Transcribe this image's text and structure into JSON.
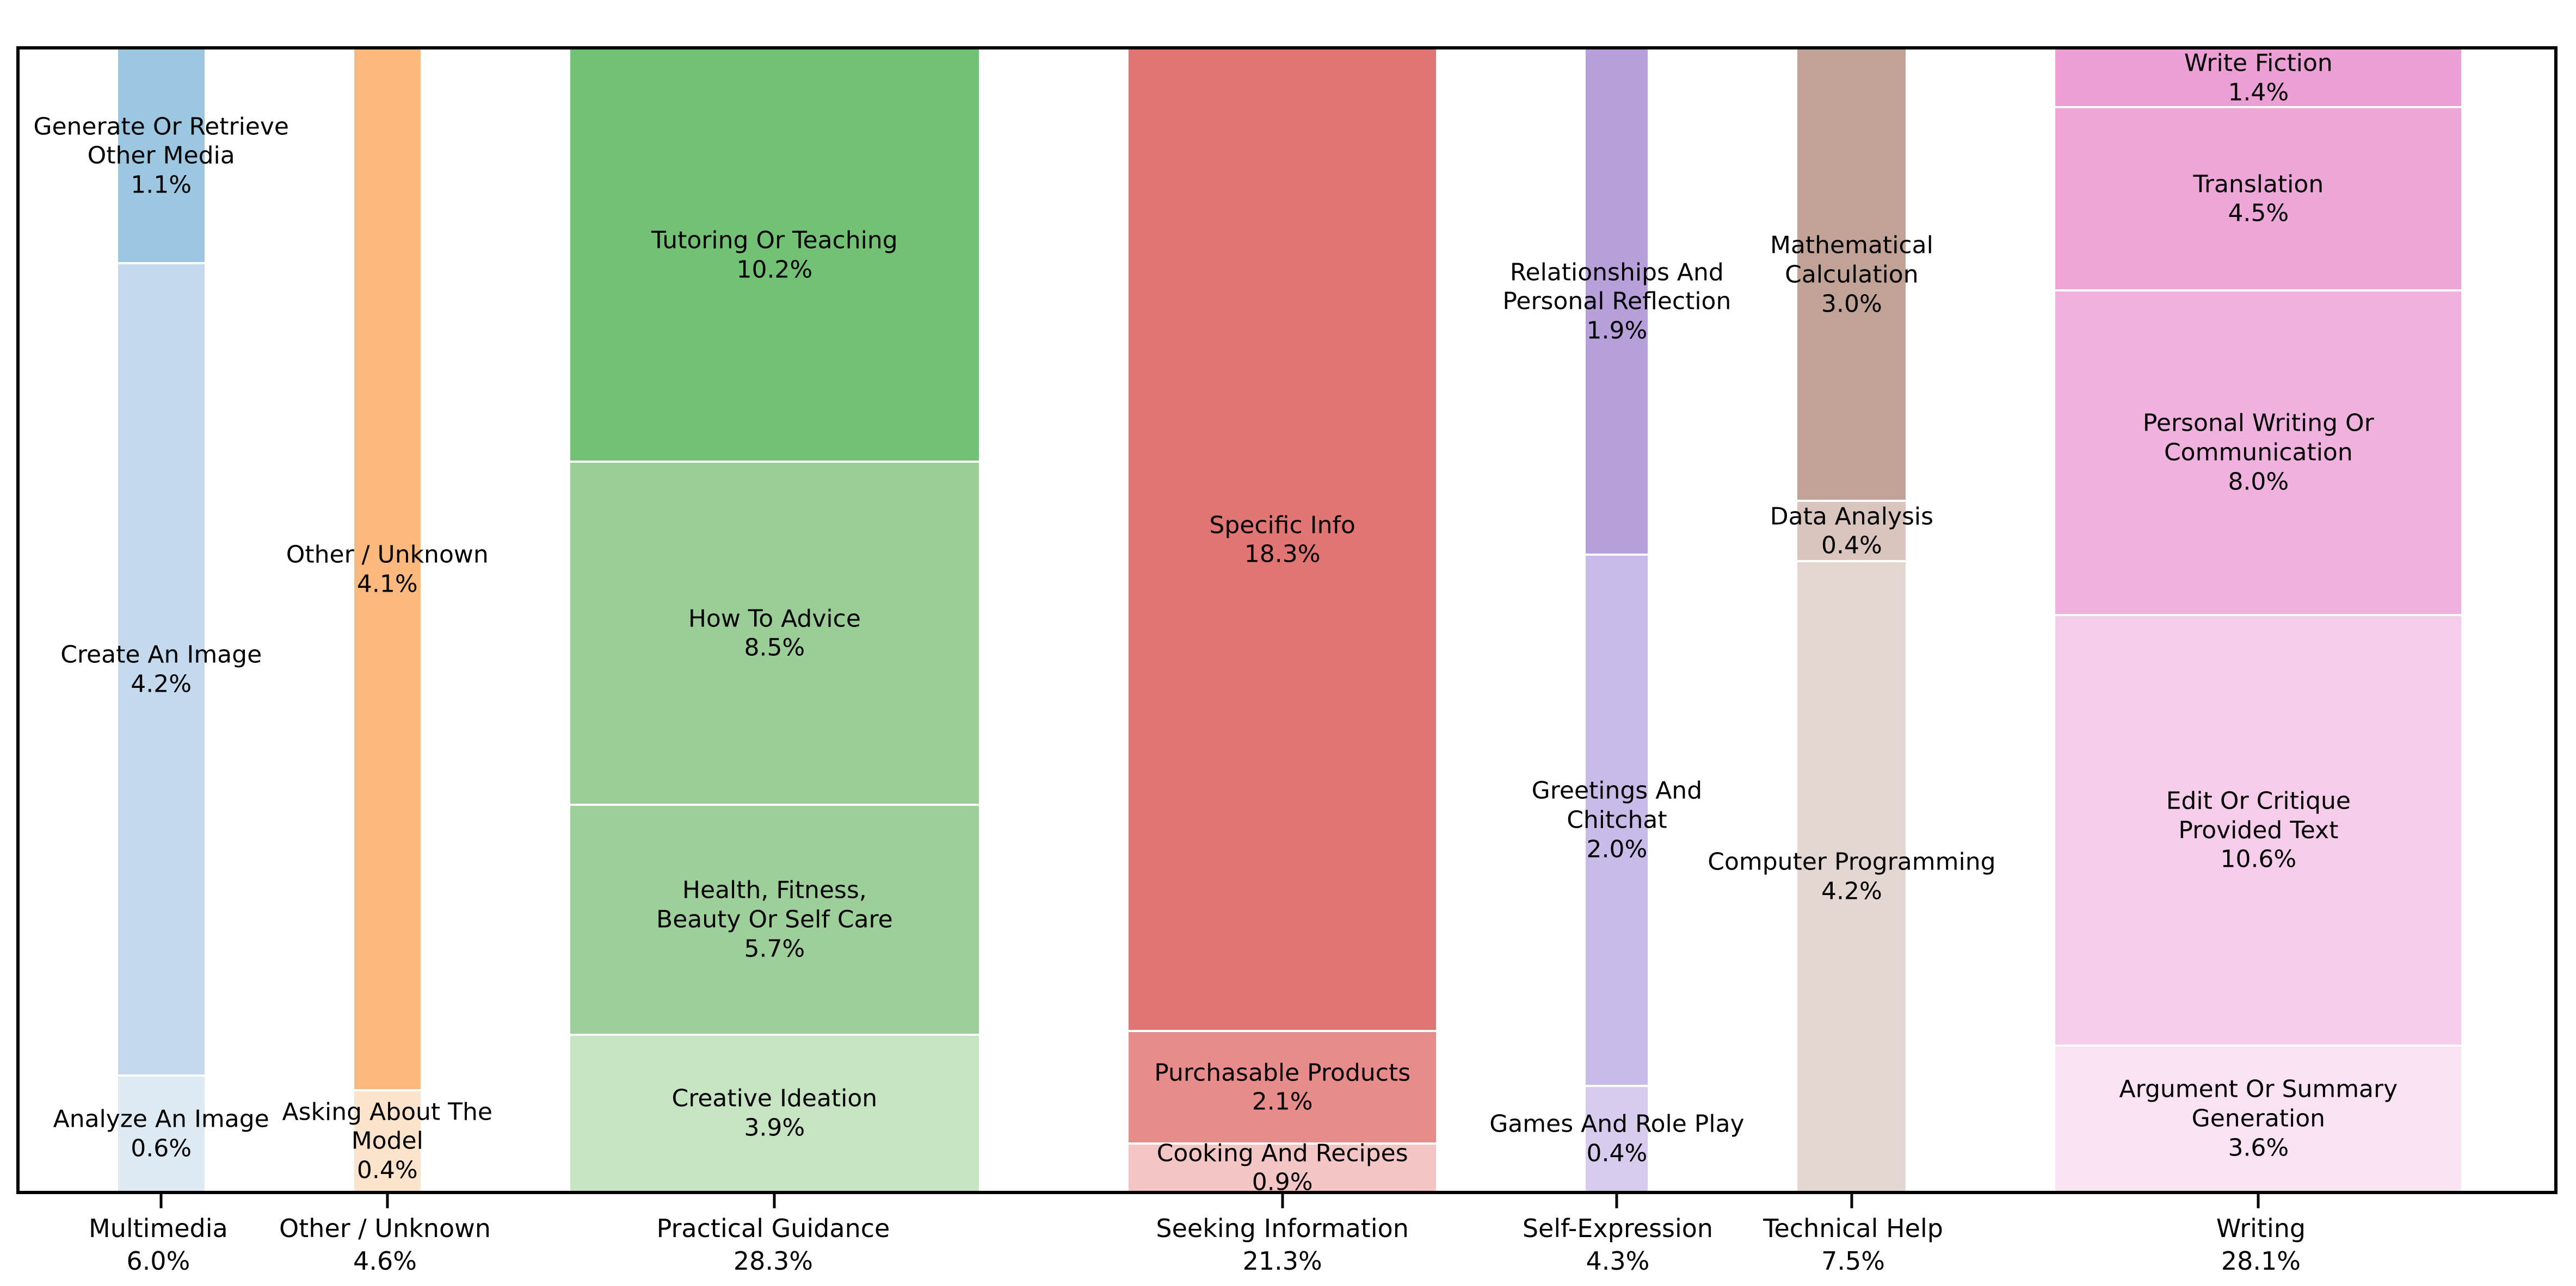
{
  "chart_data": {
    "type": "bar",
    "subtype": "mosaic-marimekko",
    "orientation": "vertical",
    "grid": false,
    "legend": false,
    "background_color": "#ffffff",
    "frame_color": "#000000",
    "text_color": "#000000",
    "separator_color": "#ffffff",
    "categories": [
      {
        "label": "Multimedia",
        "pct": "6.0%",
        "segments": [
          {
            "label": "Generate Or Retrieve Other Media",
            "pct": "1.1%",
            "lines": [
              "Generate Or Retrieve",
              "Other Media",
              "1.1%"
            ],
            "color": "#9cc7e0"
          },
          {
            "label": "Create An Image",
            "pct": "4.2%",
            "lines": [
              "Create An Image",
              "4.2%"
            ],
            "color": "#c3d9ed"
          },
          {
            "label": "Analyze An Image",
            "pct": "0.6%",
            "lines": [
              "Analyze An Image",
              "0.6%"
            ],
            "color": "#ddeaf4"
          }
        ]
      },
      {
        "label": "Other / Unknown",
        "pct": "4.6%",
        "segments": [
          {
            "label": "Other / Unknown",
            "pct": "4.1%",
            "lines": [
              "Other / Unknown",
              "4.1%"
            ],
            "color": "#fcb97d"
          },
          {
            "label": "Asking About The Model",
            "pct": "0.4%",
            "lines": [
              "Asking About The",
              "Model",
              "0.4%"
            ],
            "color": "#fce3cb"
          }
        ]
      },
      {
        "label": "Practical Guidance",
        "pct": "28.3%",
        "segments": [
          {
            "label": "Tutoring Or Teaching",
            "pct": "10.2%",
            "lines": [
              "Tutoring Or Teaching",
              "10.2%"
            ],
            "color": "#73c175"
          },
          {
            "label": "How To Advice",
            "pct": "8.5%",
            "lines": [
              "How To Advice",
              "8.5%"
            ],
            "color": "#9bcd97"
          },
          {
            "label": "Health, Fitness, Beauty Or Self Care",
            "pct": "5.7%",
            "lines": [
              "Health, Fitness,",
              "Beauty Or Self Care",
              "5.7%"
            ],
            "color": "#9ecf9b"
          },
          {
            "label": "Creative Ideation",
            "pct": "3.9%",
            "lines": [
              "Creative Ideation",
              "3.9%"
            ],
            "color": "#c6e4c1"
          }
        ]
      },
      {
        "label": "Seeking Information",
        "pct": "21.3%",
        "segments": [
          {
            "label": "Specific Info",
            "pct": "18.3%",
            "lines": [
              "Specific Info",
              "18.3%"
            ],
            "color": "#e07674"
          },
          {
            "label": "Purchasable Products",
            "pct": "2.1%",
            "lines": [
              "Purchasable Products",
              "2.1%"
            ],
            "color": "#e78c8a"
          },
          {
            "label": "Cooking And Recipes",
            "pct": "0.9%",
            "lines": [
              "Cooking And Recipes",
              "0.9%"
            ],
            "color": "#f3c5c4"
          }
        ]
      },
      {
        "label": "Self-Expression",
        "pct": "4.3%",
        "segments": [
          {
            "label": "Relationships And Personal Reflection",
            "pct": "1.9%",
            "lines": [
              "Relationships And",
              "Personal Reflection",
              "1.9%"
            ],
            "color": "#b79fd9"
          },
          {
            "label": "Greetings And Chitchat",
            "pct": "2.0%",
            "lines": [
              "Greetings And",
              "Chitchat",
              "2.0%"
            ],
            "color": "#c9bbe7"
          },
          {
            "label": "Games And Role Play",
            "pct": "0.4%",
            "lines": [
              "Games And Role Play",
              "0.4%"
            ],
            "color": "#d8ccee"
          }
        ]
      },
      {
        "label": "Technical Help",
        "pct": "7.5%",
        "segments": [
          {
            "label": "Mathematical Calculation",
            "pct": "3.0%",
            "lines": [
              "Mathematical",
              "Calculation",
              "3.0%"
            ],
            "color": "#c1a296"
          },
          {
            "label": "Data Analysis",
            "pct": "0.4%",
            "lines": [
              "Data Analysis",
              "0.4%"
            ],
            "color": "#d9c5be"
          },
          {
            "label": "Computer Programming",
            "pct": "4.2%",
            "lines": [
              "Computer Programming",
              "4.2%"
            ],
            "color": "#e4d6d0"
          }
        ]
      },
      {
        "label": "Writing",
        "pct": "28.1%",
        "segments": [
          {
            "label": "Write Fiction",
            "pct": "1.4%",
            "lines": [
              "Write Fiction",
              "1.4%"
            ],
            "color": "#ec9fd5"
          },
          {
            "label": "Translation",
            "pct": "4.5%",
            "lines": [
              "Translation",
              "4.5%"
            ],
            "color": "#eda6d8"
          },
          {
            "label": "Personal Writing Or Communication",
            "pct": "8.0%",
            "lines": [
              "Personal Writing Or",
              "Communication",
              "8.0%"
            ],
            "color": "#efb2de"
          },
          {
            "label": "Edit Or Critique Provided Text",
            "pct": "10.6%",
            "lines": [
              "Edit Or Critique",
              "Provided Text",
              "10.6%"
            ],
            "color": "#f5cdea"
          },
          {
            "label": "Argument Or Summary Generation",
            "pct": "3.6%",
            "lines": [
              "Argument Or Summary",
              "Generation",
              "3.6%"
            ],
            "color": "#f9e2f2"
          }
        ]
      }
    ]
  }
}
